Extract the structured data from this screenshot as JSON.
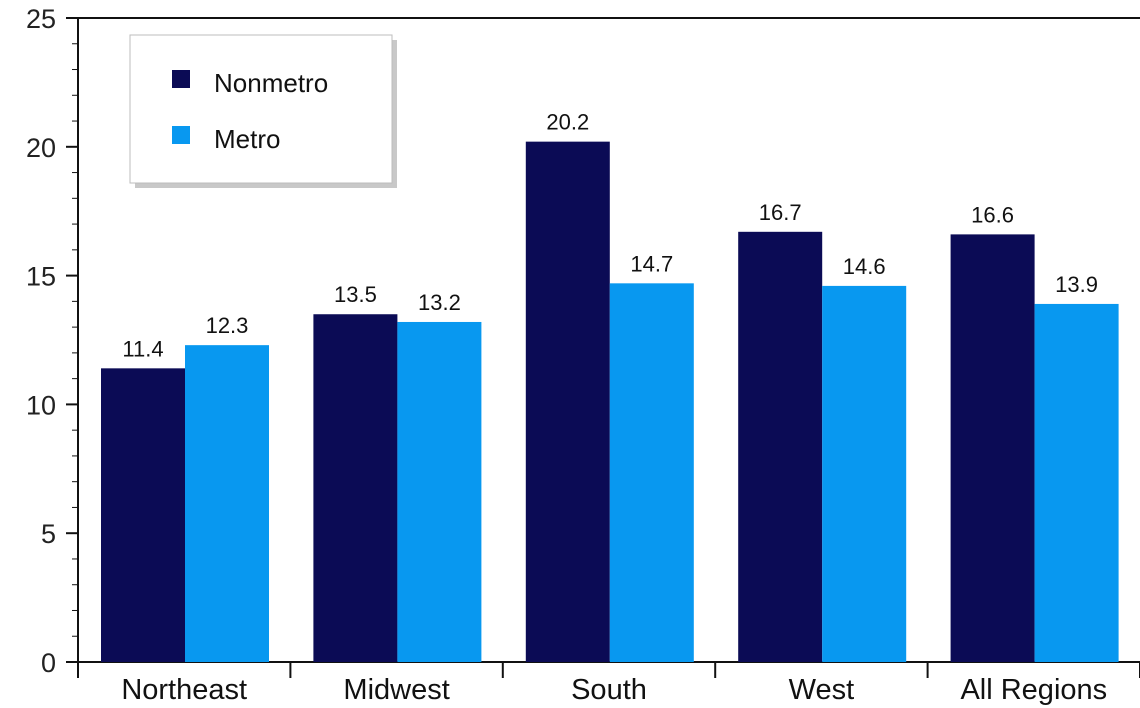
{
  "chart_data": {
    "type": "bar",
    "categories": [
      "Northeast",
      "Midwest",
      "South",
      "West",
      "All Regions"
    ],
    "series": [
      {
        "name": "Nonmetro",
        "color": "#0b0b55",
        "values": [
          11.4,
          13.5,
          20.2,
          16.7,
          16.6
        ]
      },
      {
        "name": "Metro",
        "color": "#0898f0",
        "values": [
          12.3,
          13.2,
          14.7,
          14.6,
          13.9
        ]
      }
    ],
    "ylim": [
      0,
      25
    ],
    "yticks": [
      "0",
      "5",
      "10",
      "15",
      "20",
      "25"
    ],
    "xlabel": "",
    "ylabel": "",
    "grid": false,
    "legend_position": "top-left"
  }
}
